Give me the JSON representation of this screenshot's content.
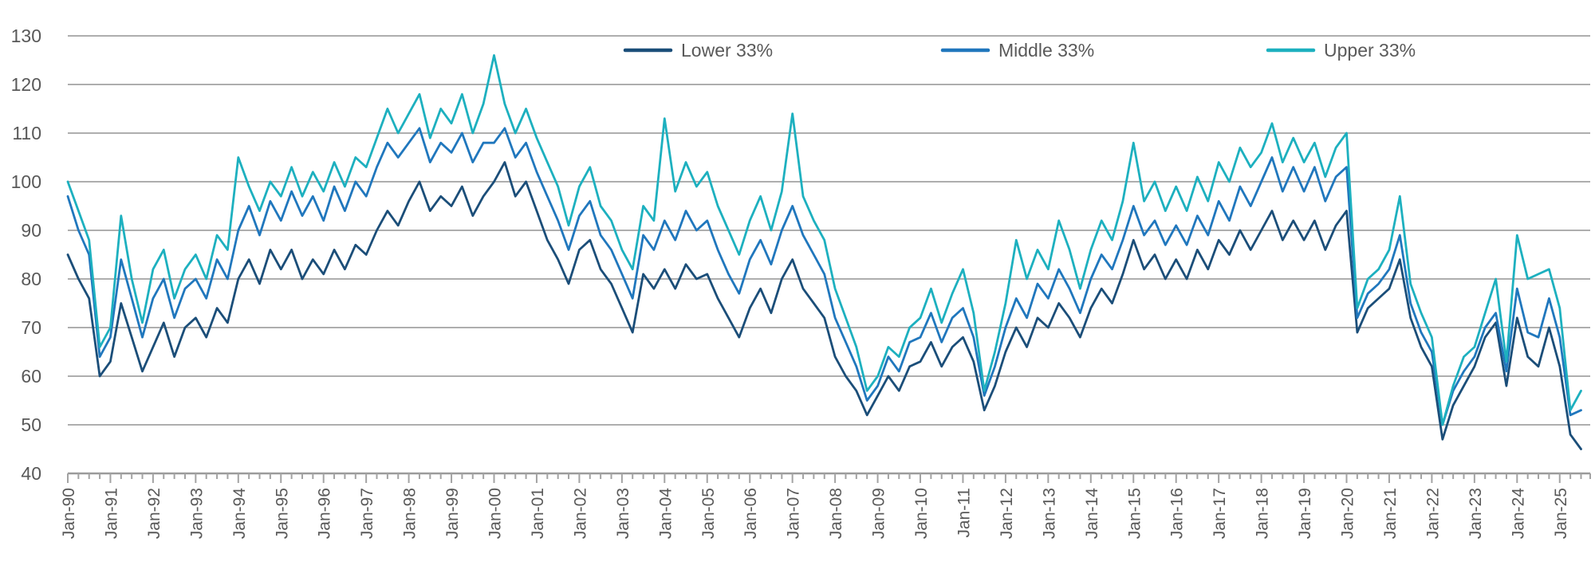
{
  "chart_data": {
    "type": "line",
    "title": "",
    "frequency": "quarterly (estimated from monthly plot)",
    "x_start": "Jan-1990",
    "x_end": "Jul-2025",
    "ylim": [
      40,
      130
    ],
    "y_ticks": [
      130,
      120,
      110,
      100,
      90,
      80,
      70,
      60,
      50,
      40
    ],
    "x_tick_labels": [
      "Jan-90",
      "Jan-91",
      "Jan-92",
      "Jan-93",
      "Jan-94",
      "Jan-95",
      "Jan-96",
      "Jan-97",
      "Jan-98",
      "Jan-99",
      "Jan-00",
      "Jan-01",
      "Jan-02",
      "Jan-03",
      "Jan-04",
      "Jan-05",
      "Jan-06",
      "Jan-07",
      "Jan-08",
      "Jan-09",
      "Jan-10",
      "Jan-11",
      "Jan-12",
      "Jan-13",
      "Jan-14",
      "Jan-15",
      "Jan-16",
      "Jan-17",
      "Jan-18",
      "Jan-19",
      "Jan-20",
      "Jan-21",
      "Jan-22",
      "Jan-23",
      "Jan-24",
      "Jan-25"
    ],
    "grid": "horizontal",
    "legend_position": "top-center",
    "minor_ticks": "quarterly",
    "colors": {
      "gridline": "#aeaeae",
      "axis": "#9b9b9b",
      "tick": "#a3a3a3",
      "text": "#595959"
    },
    "series": [
      {
        "name": "Lower 33%",
        "color": "#1b4e79",
        "values": [
          85,
          80,
          76,
          60,
          63,
          75,
          68,
          61,
          66,
          71,
          64,
          70,
          72,
          68,
          74,
          71,
          80,
          84,
          79,
          86,
          82,
          86,
          80,
          84,
          81,
          86,
          82,
          87,
          85,
          90,
          94,
          91,
          96,
          100,
          94,
          97,
          95,
          99,
          93,
          97,
          100,
          104,
          97,
          100,
          94,
          88,
          84,
          79,
          86,
          88,
          82,
          79,
          74,
          69,
          81,
          78,
          82,
          78,
          83,
          80,
          81,
          76,
          72,
          68,
          74,
          78,
          73,
          80,
          84,
          78,
          75,
          72,
          64,
          60,
          57,
          52,
          56,
          60,
          57,
          62,
          63,
          67,
          62,
          66,
          68,
          63,
          53,
          58,
          65,
          70,
          66,
          72,
          70,
          75,
          72,
          68,
          74,
          78,
          75,
          81,
          88,
          82,
          85,
          80,
          84,
          80,
          86,
          82,
          88,
          85,
          90,
          86,
          90,
          94,
          88,
          92,
          88,
          92,
          86,
          91,
          94,
          69,
          74,
          76,
          78,
          84,
          72,
          66,
          62,
          47,
          54,
          58,
          62,
          68,
          71,
          58,
          72,
          64,
          62,
          70,
          62,
          48,
          45
        ]
      },
      {
        "name": "Middle 33%",
        "color": "#2077bd",
        "values": [
          97,
          90,
          85,
          64,
          68,
          84,
          76,
          68,
          76,
          80,
          72,
          78,
          80,
          76,
          84,
          80,
          90,
          95,
          89,
          96,
          92,
          98,
          93,
          97,
          92,
          99,
          94,
          100,
          97,
          103,
          108,
          105,
          108,
          111,
          104,
          108,
          106,
          110,
          104,
          108,
          108,
          111,
          105,
          108,
          102,
          97,
          92,
          86,
          93,
          96,
          89,
          86,
          81,
          76,
          89,
          86,
          92,
          88,
          94,
          90,
          92,
          86,
          81,
          77,
          84,
          88,
          83,
          90,
          95,
          89,
          85,
          81,
          72,
          67,
          62,
          55,
          58,
          64,
          61,
          67,
          68,
          73,
          67,
          72,
          74,
          68,
          56,
          62,
          70,
          76,
          72,
          79,
          76,
          82,
          78,
          73,
          80,
          85,
          82,
          88,
          95,
          89,
          92,
          87,
          91,
          87,
          93,
          89,
          96,
          92,
          99,
          95,
          100,
          105,
          98,
          103,
          98,
          103,
          96,
          101,
          103,
          72,
          77,
          79,
          82,
          89,
          75,
          69,
          65,
          50,
          57,
          61,
          64,
          70,
          73,
          61,
          78,
          69,
          68,
          76,
          68,
          52,
          53
        ]
      },
      {
        "name": "Upper 33%",
        "color": "#1db0bf",
        "values": [
          100,
          94,
          88,
          66,
          70,
          93,
          80,
          71,
          82,
          86,
          76,
          82,
          85,
          80,
          89,
          86,
          105,
          99,
          94,
          100,
          97,
          103,
          97,
          102,
          98,
          104,
          99,
          105,
          103,
          109,
          115,
          110,
          114,
          118,
          109,
          115,
          112,
          118,
          110,
          116,
          126,
          116,
          110,
          115,
          109,
          104,
          99,
          91,
          99,
          103,
          95,
          92,
          86,
          82,
          95,
          92,
          113,
          98,
          104,
          99,
          102,
          95,
          90,
          85,
          92,
          97,
          90,
          98,
          114,
          97,
          92,
          88,
          78,
          72,
          66,
          57,
          60,
          66,
          64,
          70,
          72,
          78,
          71,
          77,
          82,
          73,
          57,
          65,
          75,
          88,
          80,
          86,
          82,
          92,
          86,
          78,
          86,
          92,
          88,
          96,
          108,
          96,
          100,
          94,
          99,
          94,
          101,
          96,
          104,
          100,
          107,
          103,
          106,
          112,
          104,
          109,
          104,
          108,
          101,
          107,
          110,
          74,
          80,
          82,
          86,
          97,
          79,
          73,
          68,
          50,
          58,
          64,
          66,
          73,
          80,
          63,
          89,
          80,
          81,
          82,
          74,
          53,
          57
        ]
      }
    ]
  }
}
